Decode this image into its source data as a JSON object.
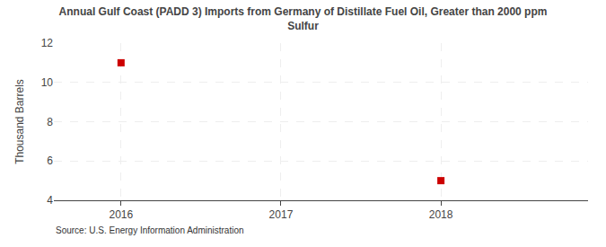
{
  "chart_data": {
    "type": "scatter",
    "title": "Annual Gulf Coast (PADD 3) Imports from Germany of Distillate Fuel Oil, Greater than 2000 ppm\nSulfur",
    "ylabel": "Thousand Barrels",
    "annotations": [
      "Source: U.S. Energy Information Administration"
    ],
    "x": [
      2016,
      2018
    ],
    "values": [
      11,
      5
    ],
    "color": "#cc0000",
    "marker": "square",
    "xlim": [
      2015.58,
      2018.92
    ],
    "xticks": [
      2016,
      2017,
      2018
    ],
    "ylim": [
      4,
      12
    ],
    "yticks": [
      4,
      6,
      8,
      10,
      12
    ],
    "grid": true
  }
}
